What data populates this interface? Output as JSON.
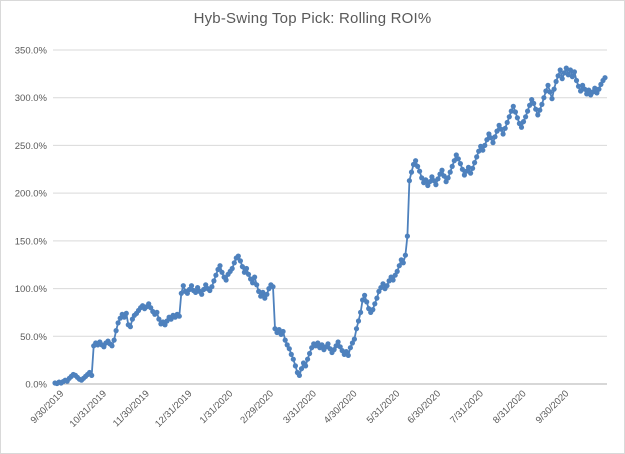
{
  "chart_data": {
    "type": "line",
    "title": "Hyb-Swing Top Pick: Rolling ROI%",
    "series": [
      {
        "name": "Rolling ROI%",
        "color": "#4E81BD",
        "marker": "circle",
        "values": [
          1,
          0.5,
          2,
          1,
          2.5,
          4,
          3,
          6,
          8,
          10,
          9,
          7,
          5,
          4,
          6,
          8,
          10,
          12,
          9,
          40,
          43,
          41,
          44,
          41,
          39,
          43,
          45,
          42,
          40,
          46,
          56,
          64,
          69,
          73,
          70,
          74,
          62,
          60,
          68,
          72,
          74,
          77,
          80,
          82,
          79,
          81,
          84,
          80,
          76,
          73,
          75,
          68,
          63,
          65,
          62,
          66,
          70,
          68,
          72,
          70,
          73,
          71,
          95,
          103,
          97,
          95,
          99,
          103,
          98,
          96,
          101,
          97,
          94,
          99,
          104,
          100,
          98,
          102,
          108,
          114,
          120,
          124,
          117,
          112,
          109,
          115,
          118,
          121,
          127,
          132,
          134,
          129,
          123,
          117,
          121,
          115,
          110,
          106,
          112,
          104,
          97,
          92,
          96,
          90,
          94,
          100,
          104,
          102,
          58,
          54,
          57,
          52,
          55,
          46,
          41,
          37,
          31,
          26,
          19,
          12,
          9,
          16,
          22,
          19,
          26,
          32,
          38,
          42,
          40,
          43,
          38,
          41,
          36,
          39,
          42,
          37,
          33,
          36,
          40,
          44,
          39,
          35,
          31,
          34,
          30,
          38,
          43,
          47,
          58,
          66,
          75,
          88,
          93,
          86,
          79,
          75,
          78,
          84,
          90,
          97,
          101,
          105,
          100,
          103,
          108,
          112,
          109,
          114,
          118,
          124,
          130,
          127,
          135,
          155,
          213,
          222,
          230,
          234,
          228,
          223,
          216,
          211,
          214,
          208,
          212,
          217,
          213,
          209,
          215,
          220,
          224,
          218,
          212,
          216,
          222,
          228,
          234,
          240,
          236,
          231,
          225,
          219,
          223,
          227,
          221,
          226,
          232,
          238,
          244,
          249,
          245,
          250,
          256,
          262,
          258,
          253,
          259,
          265,
          271,
          267,
          262,
          268,
          274,
          280,
          286,
          291,
          285,
          279,
          273,
          269,
          275,
          280,
          286,
          292,
          298,
          294,
          288,
          282,
          287,
          293,
          300,
          307,
          313,
          306,
          299,
          309,
          317,
          323,
          329,
          320,
          326,
          331,
          324,
          329,
          322,
          327,
          318,
          312,
          307,
          313,
          309,
          304,
          308,
          303,
          306,
          310,
          305,
          309,
          314,
          318,
          321
        ]
      }
    ],
    "x_tick_labels": [
      "9/30/2019",
      "10/31/2019",
      "11/30/2019",
      "12/31/2019",
      "1/31/2020",
      "2/29/2020",
      "3/31/2020",
      "4/30/2020",
      "5/31/2020",
      "6/30/2020",
      "7/31/2020",
      "8/31/2020",
      "9/30/2020"
    ],
    "x_tick_indices": [
      3,
      24,
      45,
      66,
      86,
      106,
      127,
      147,
      168,
      188,
      209,
      230,
      251
    ],
    "x_label_rotation_deg": -45,
    "y_tick_labels": [
      "0.0%",
      "50.0%",
      "100.0%",
      "150.0%",
      "200.0%",
      "250.0%",
      "300.0%",
      "350.0%"
    ],
    "y_tick_values": [
      0,
      50,
      100,
      150,
      200,
      250,
      300,
      350
    ],
    "ylim": [
      0,
      350
    ],
    "grid": true,
    "legend": "none",
    "colors": {
      "series": "#4E81BD",
      "gridline": "#D9D9D9",
      "zero_axis_line": "#AFAFAF",
      "label_text": "#595959",
      "title_text": "#595959",
      "frame_border": "#D9D9D9",
      "background": "#FFFFFF"
    }
  }
}
